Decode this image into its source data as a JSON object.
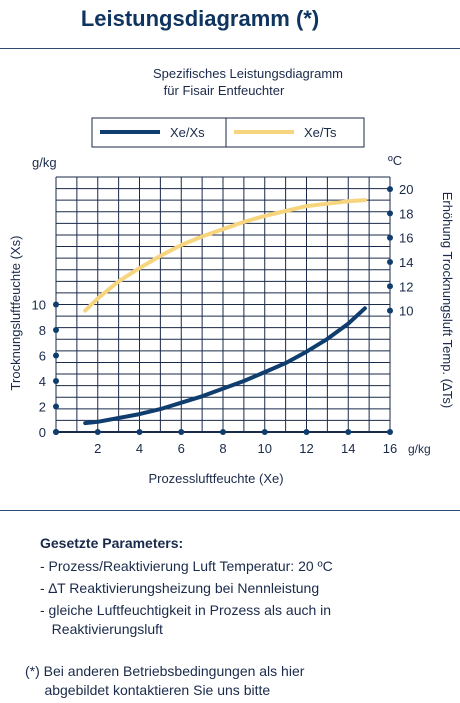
{
  "header": {
    "title": "Leistungsdiagramm (*)"
  },
  "chart_data": {
    "type": "line",
    "title_lines": [
      "Spezifisches Leistungsdiagramm",
      "für Fisair Entfeuchter"
    ],
    "xlabel": "Prozessluftfeuchte (Xe)",
    "x_unit": "g/kg",
    "ylabel_left": "Trocknungsluftfeuchte (Xs)",
    "y_unit_left": "g/kg",
    "ylabel_right": "Erhöhung Trocknungsluft Temp.  (∆Ts)",
    "y_unit_right": "ºC",
    "xlim": [
      0,
      16
    ],
    "x_ticks": [
      "2",
      "4",
      "6",
      "8",
      "10",
      "12",
      "14",
      "16"
    ],
    "ylim_left": [
      0,
      20
    ],
    "y_ticks_left": [
      "0",
      "2",
      "4",
      "6",
      "8",
      "10"
    ],
    "ylim_right": [
      0,
      21
    ],
    "y_ticks_right": [
      "10",
      "12",
      "14",
      "16",
      "18",
      "20"
    ],
    "grid": true,
    "legend_position": "top",
    "series": [
      {
        "name": "Xe/Xs",
        "axis": "left",
        "color": "#0f3d6e",
        "x": [
          1.4,
          2,
          3,
          4,
          5,
          6,
          7,
          8,
          9,
          10,
          11,
          12,
          13,
          14,
          14.8
        ],
        "y": [
          0.7,
          0.8,
          1.1,
          1.4,
          1.8,
          2.3,
          2.8,
          3.4,
          4.0,
          4.7,
          5.4,
          6.3,
          7.3,
          8.5,
          9.7
        ]
      },
      {
        "name": "Xe/Ts",
        "axis": "right",
        "color": "#f6d57e",
        "x": [
          1.4,
          2,
          3,
          4,
          5,
          6,
          7,
          8,
          9,
          10,
          11,
          12,
          13,
          14,
          14.8
        ],
        "y": [
          10.0,
          11.0,
          12.4,
          13.5,
          14.5,
          15.4,
          16.1,
          16.7,
          17.3,
          17.8,
          18.2,
          18.6,
          18.8,
          19.0,
          19.1
        ]
      }
    ]
  },
  "params": {
    "heading": "Gesetzte Parameters:",
    "items": [
      "- Prozess/Reaktivierung Luft Temperatur: 20 ºC",
      "- ∆T Reaktivierungsheizung bei Nennleistung",
      "- gleiche Luftfeuchtigkeit in Prozess als auch in\n   Reaktivierungsluft"
    ]
  },
  "footnote": "(*) Bei anderen Betriebsbedingungen als hier\n     abgebildet kontaktieren Sie uns bitte"
}
